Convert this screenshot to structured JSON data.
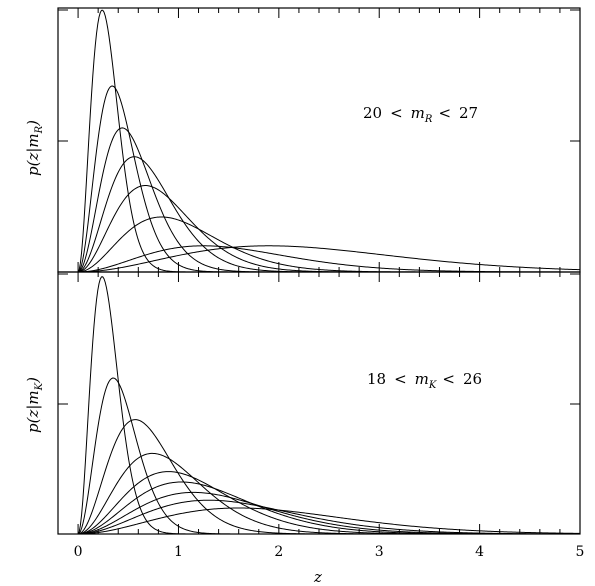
{
  "chart_data": [
    {
      "type": "line",
      "panel": "top",
      "ylabel": "p(z|m_R)",
      "ylabel_parts": {
        "p": "p(z|m",
        "sub": "R",
        "close": ")"
      },
      "annotation": "20 < m_R < 27",
      "annotation_parts": {
        "lo": "20",
        "op1": "<",
        "m": "m",
        "sub": "R",
        "op2": "<",
        "hi": "27"
      },
      "xlim": [
        -0.2,
        5
      ],
      "ylim": [
        0,
        1
      ],
      "y_tick_values": [
        0,
        0.5,
        1
      ],
      "series": [
        {
          "peak_z": 0.24,
          "peak_height": 1.0
        },
        {
          "peak_z": 0.34,
          "peak_height": 0.71
        },
        {
          "peak_z": 0.44,
          "peak_height": 0.55
        },
        {
          "peak_z": 0.56,
          "peak_height": 0.44
        },
        {
          "peak_z": 0.67,
          "peak_height": 0.33
        },
        {
          "peak_z": 0.83,
          "peak_height": 0.21
        },
        {
          "peak_z": 1.25,
          "peak_height": 0.1
        },
        {
          "peak_z": 1.9,
          "peak_height": 0.1
        }
      ]
    },
    {
      "type": "line",
      "panel": "bottom",
      "ylabel": "p(z|m_K)",
      "ylabel_parts": {
        "p": "p(z|m",
        "sub": "K",
        "close": ")"
      },
      "annotation": "18 < m_K < 26",
      "annotation_parts": {
        "lo": "18",
        "op1": "<",
        "m": "m",
        "sub": "K",
        "op2": "<",
        "hi": "26"
      },
      "xlabel": "z",
      "xlim": [
        -0.2,
        5
      ],
      "ylim": [
        0,
        1
      ],
      "x_tick_labels": [
        "0",
        "1",
        "2",
        "3",
        "4",
        "5"
      ],
      "x_tick_values": [
        0,
        1,
        2,
        3,
        4,
        5
      ],
      "y_tick_values": [
        0,
        0.5,
        1
      ],
      "series": [
        {
          "peak_z": 0.24,
          "peak_height": 0.99
        },
        {
          "peak_z": 0.35,
          "peak_height": 0.6
        },
        {
          "peak_z": 0.57,
          "peak_height": 0.44
        },
        {
          "peak_z": 0.74,
          "peak_height": 0.31
        },
        {
          "peak_z": 0.9,
          "peak_height": 0.24
        },
        {
          "peak_z": 1.03,
          "peak_height": 0.2
        },
        {
          "peak_z": 1.15,
          "peak_height": 0.16
        },
        {
          "peak_z": 1.3,
          "peak_height": 0.13
        },
        {
          "peak_z": 1.6,
          "peak_height": 0.1
        }
      ]
    }
  ]
}
